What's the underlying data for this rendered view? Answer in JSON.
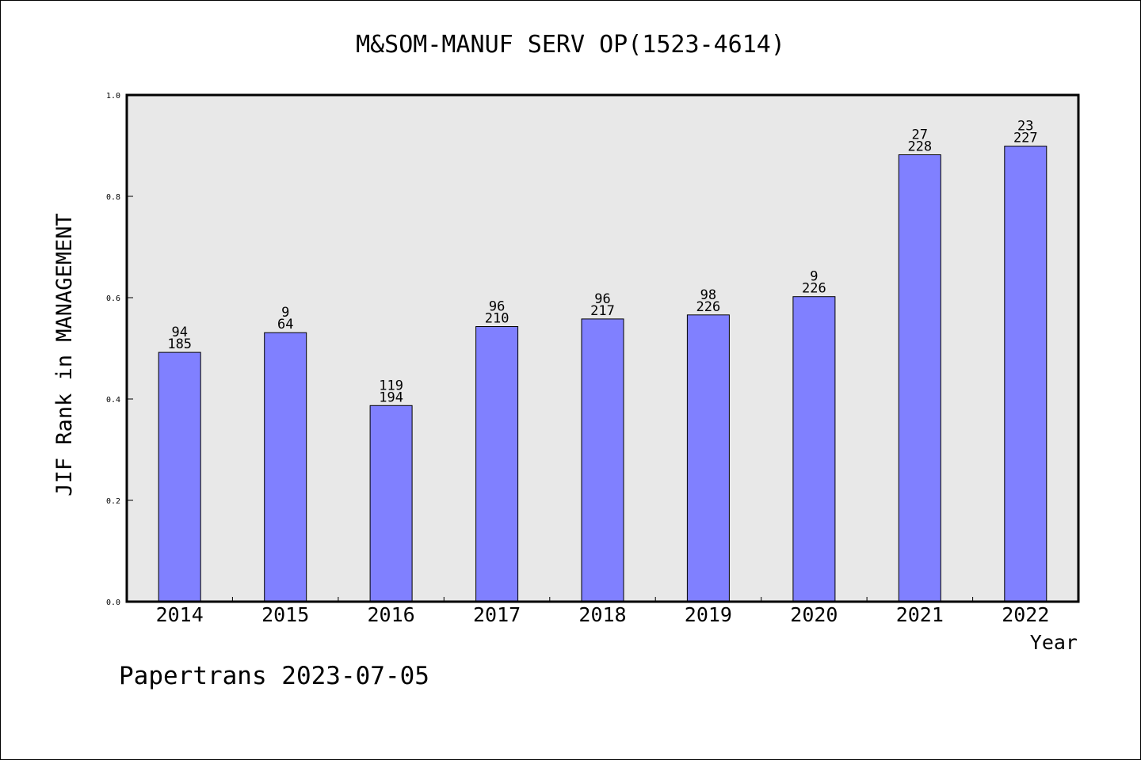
{
  "chart_data": {
    "type": "bar",
    "title": "M&SOM-MANUF SERV OP(1523-4614)",
    "xlabel": "Year",
    "ylabel": "JIF Rank in MANAGEMENT",
    "ylim": [
      0,
      1.0
    ],
    "yticks": [
      "0.0",
      "0.2",
      "0.4",
      "0.6",
      "0.8",
      "1.0"
    ],
    "categories": [
      "2014",
      "2015",
      "2016",
      "2017",
      "2018",
      "2019",
      "2020",
      "2021",
      "2022"
    ],
    "values": [
      0.492,
      0.531,
      0.387,
      0.543,
      0.558,
      0.566,
      0.602,
      0.882,
      0.899
    ],
    "rank_labels": [
      "94",
      "9",
      "119",
      "96",
      "96",
      "98",
      "9",
      "27",
      "23"
    ],
    "total_labels": [
      "185",
      "64",
      "194",
      "210",
      "217",
      "226",
      "226",
      "228",
      "227"
    ],
    "bar_color": "#8080ff",
    "plot_background": "#e8e8e8",
    "grid": false
  },
  "footer": "Papertrans 2023-07-05"
}
